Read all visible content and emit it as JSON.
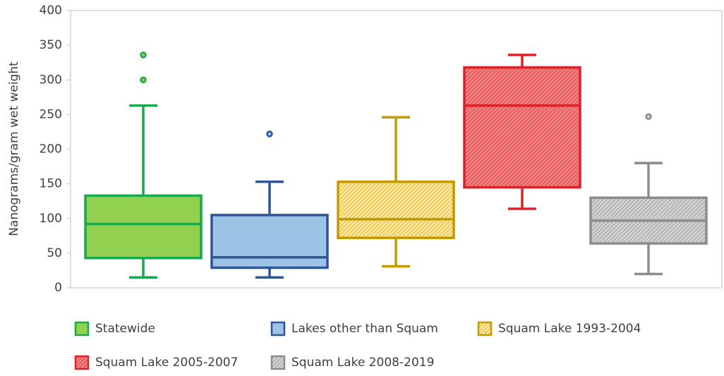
{
  "chart_data": {
    "type": "box",
    "y_label": "Nanograms/gram wet weight",
    "ylim": [
      0,
      400
    ],
    "yticks": [
      0,
      50,
      100,
      150,
      200,
      250,
      300,
      350,
      400
    ],
    "grid": false,
    "legend": "bottom",
    "series": [
      {
        "name": "Statewide",
        "color": "#1aa84c",
        "fill": "#92d050",
        "hatch": false,
        "whisker_low": 15,
        "q1": 43,
        "median": 92,
        "q3": 133,
        "whisker_high": 263,
        "outliers": [
          300,
          336
        ]
      },
      {
        "name": "Lakes other than Squam",
        "color": "#2e5597",
        "fill": "#9dc3e6",
        "hatch": false,
        "whisker_low": 15,
        "q1": 29,
        "median": 44,
        "q3": 105,
        "whisker_high": 153,
        "outliers": [
          222
        ]
      },
      {
        "name": "Squam Lake 1993-2004",
        "color": "#c49a00",
        "fill": "#ffe699",
        "hatch": true,
        "whisker_low": 31,
        "q1": 72,
        "median": 99,
        "q3": 153,
        "whisker_high": 246,
        "outliers": []
      },
      {
        "name": "Squam Lake 2005-2007",
        "color": "#d9222a",
        "fill": "#f08080",
        "hatch": true,
        "whisker_low": 114,
        "q1": 145,
        "median": 263,
        "q3": 318,
        "whisker_high": 336,
        "outliers": []
      },
      {
        "name": "Squam Lake 2008-2019",
        "color": "#8c8c8c",
        "fill": "#d0d0d0",
        "hatch": true,
        "whisker_low": 20,
        "q1": 64,
        "median": 97,
        "q3": 130,
        "whisker_high": 180,
        "outliers": [
          247
        ]
      }
    ]
  }
}
